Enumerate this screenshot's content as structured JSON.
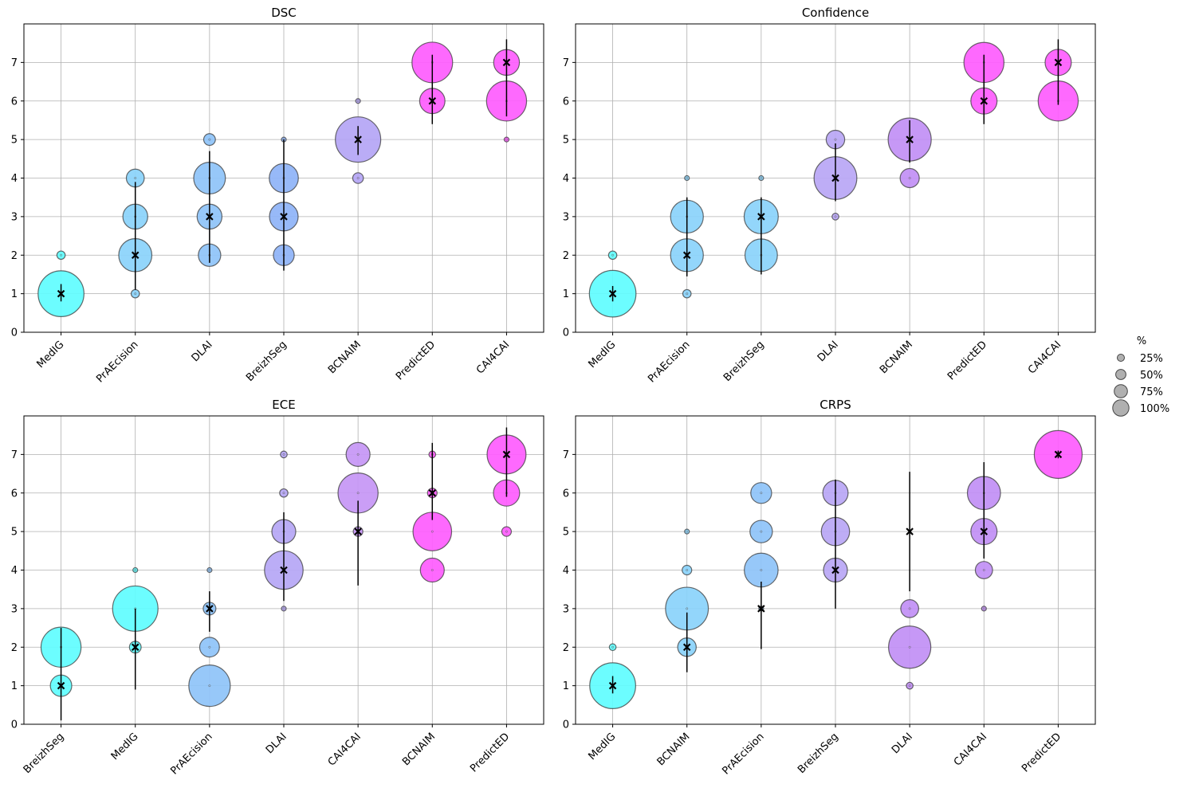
{
  "chart_data": [
    {
      "type": "scatter",
      "title": "DSC",
      "categories": [
        "MedIG",
        "PrAEcision",
        "DLAI",
        "BreizhSeg",
        "BCNAIM",
        "PredictED",
        "CAI4CAI"
      ],
      "ylim": [
        0,
        8
      ],
      "yticks": [
        0,
        1,
        2,
        3,
        4,
        5,
        6,
        7
      ],
      "grid": true,
      "bubbles": [
        {
          "team": "MedIG",
          "rank": 1,
          "pct": 92
        },
        {
          "team": "MedIG",
          "rank": 2,
          "pct": 3
        },
        {
          "team": "PrAEcision",
          "rank": 1,
          "pct": 3
        },
        {
          "team": "PrAEcision",
          "rank": 2,
          "pct": 48
        },
        {
          "team": "PrAEcision",
          "rank": 3,
          "pct": 27
        },
        {
          "team": "PrAEcision",
          "rank": 4,
          "pct": 14
        },
        {
          "team": "DLAI",
          "rank": 2,
          "pct": 22
        },
        {
          "team": "DLAI",
          "rank": 3,
          "pct": 27
        },
        {
          "team": "DLAI",
          "rank": 4,
          "pct": 44
        },
        {
          "team": "DLAI",
          "rank": 5,
          "pct": 6
        },
        {
          "team": "BreizhSeg",
          "rank": 2,
          "pct": 19
        },
        {
          "team": "BreizhSeg",
          "rank": 3,
          "pct": 36
        },
        {
          "team": "BreizhSeg",
          "rank": 4,
          "pct": 37
        },
        {
          "team": "BreizhSeg",
          "rank": 5,
          "pct": 1
        },
        {
          "team": "BCNAIM",
          "rank": 4,
          "pct": 5
        },
        {
          "team": "BCNAIM",
          "rank": 5,
          "pct": 90
        },
        {
          "team": "BCNAIM",
          "rank": 6,
          "pct": 1
        },
        {
          "team": "PredictED",
          "rank": 6,
          "pct": 28
        },
        {
          "team": "PredictED",
          "rank": 7,
          "pct": 72
        },
        {
          "team": "CAI4CAI",
          "rank": 5,
          "pct": 1
        },
        {
          "team": "CAI4CAI",
          "rank": 6,
          "pct": 70
        },
        {
          "team": "CAI4CAI",
          "rank": 7,
          "pct": 29
        }
      ],
      "medians": [
        {
          "team": "MedIG",
          "median": 1,
          "low": 0.8,
          "high": 1.25
        },
        {
          "team": "PrAEcision",
          "median": 2,
          "low": 1.1,
          "high": 3.9
        },
        {
          "team": "DLAI",
          "median": 3,
          "low": 1.8,
          "high": 4.7
        },
        {
          "team": "BreizhSeg",
          "median": 3,
          "low": 1.6,
          "high": 5.0
        },
        {
          "team": "BCNAIM",
          "median": 5,
          "low": 4.6,
          "high": 5.35
        },
        {
          "team": "PredictED",
          "median": 6,
          "low": 5.4,
          "high": 7.2
        },
        {
          "team": "CAI4CAI",
          "median": 7,
          "low": 5.6,
          "high": 7.6
        }
      ]
    },
    {
      "type": "scatter",
      "title": "Confidence",
      "categories": [
        "MedIG",
        "PrAEcision",
        "BreizhSeg",
        "DLAI",
        "BCNAIM",
        "PredictED",
        "CAI4CAI"
      ],
      "ylim": [
        0,
        8
      ],
      "yticks": [
        0,
        1,
        2,
        3,
        4,
        5,
        6,
        7
      ],
      "grid": true,
      "bubbles": [
        {
          "team": "MedIG",
          "rank": 1,
          "pct": 95
        },
        {
          "team": "MedIG",
          "rank": 2,
          "pct": 3
        },
        {
          "team": "PrAEcision",
          "rank": 1,
          "pct": 3
        },
        {
          "team": "PrAEcision",
          "rank": 2,
          "pct": 47
        },
        {
          "team": "PrAEcision",
          "rank": 3,
          "pct": 47
        },
        {
          "team": "PrAEcision",
          "rank": 4,
          "pct": 1
        },
        {
          "team": "BreizhSeg",
          "rank": 2,
          "pct": 46
        },
        {
          "team": "BreizhSeg",
          "rank": 3,
          "pct": 51
        },
        {
          "team": "BreizhSeg",
          "rank": 4,
          "pct": 1
        },
        {
          "team": "DLAI",
          "rank": 3,
          "pct": 2
        },
        {
          "team": "DLAI",
          "rank": 4,
          "pct": 80
        },
        {
          "team": "DLAI",
          "rank": 5,
          "pct": 15
        },
        {
          "team": "BCNAIM",
          "rank": 4,
          "pct": 16
        },
        {
          "team": "BCNAIM",
          "rank": 5,
          "pct": 81
        },
        {
          "team": "PredictED",
          "rank": 6,
          "pct": 30
        },
        {
          "team": "PredictED",
          "rank": 7,
          "pct": 70
        },
        {
          "team": "CAI4CAI",
          "rank": 6,
          "pct": 70
        },
        {
          "team": "CAI4CAI",
          "rank": 7,
          "pct": 30
        }
      ],
      "medians": [
        {
          "team": "MedIG",
          "median": 1,
          "low": 0.8,
          "high": 1.2
        },
        {
          "team": "PrAEcision",
          "median": 2,
          "low": 1.45,
          "high": 3.5
        },
        {
          "team": "BreizhSeg",
          "median": 3,
          "low": 1.5,
          "high": 3.5
        },
        {
          "team": "DLAI",
          "median": 4,
          "low": 3.4,
          "high": 4.9
        },
        {
          "team": "BCNAIM",
          "median": 5,
          "low": 4.4,
          "high": 5.5
        },
        {
          "team": "PredictED",
          "median": 6,
          "low": 5.4,
          "high": 7.2
        },
        {
          "team": "CAI4CAI",
          "median": 7,
          "low": 5.9,
          "high": 7.6
        }
      ]
    },
    {
      "type": "scatter",
      "title": "ECE",
      "categories": [
        "BreizhSeg",
        "MedIG",
        "PrAEcision",
        "DLAI",
        "CAI4CAI",
        "BCNAIM",
        "PredictED"
      ],
      "ylim": [
        0,
        8
      ],
      "yticks": [
        0,
        1,
        2,
        3,
        4,
        5,
        6,
        7
      ],
      "grid": true,
      "bubbles": [
        {
          "team": "BreizhSeg",
          "rank": 1,
          "pct": 20
        },
        {
          "team": "BreizhSeg",
          "rank": 2,
          "pct": 70
        },
        {
          "team": "MedIG",
          "rank": 2,
          "pct": 6
        },
        {
          "team": "MedIG",
          "rank": 3,
          "pct": 90
        },
        {
          "team": "MedIG",
          "rank": 4,
          "pct": 1
        },
        {
          "team": "PrAEcision",
          "rank": 1,
          "pct": 75
        },
        {
          "team": "PrAEcision",
          "rank": 2,
          "pct": 17
        },
        {
          "team": "PrAEcision",
          "rank": 3,
          "pct": 7
        },
        {
          "team": "PrAEcision",
          "rank": 4,
          "pct": 1
        },
        {
          "team": "DLAI",
          "rank": 3,
          "pct": 1
        },
        {
          "team": "DLAI",
          "rank": 4,
          "pct": 65
        },
        {
          "team": "DLAI",
          "rank": 5,
          "pct": 25
        },
        {
          "team": "DLAI",
          "rank": 6,
          "pct": 3
        },
        {
          "team": "DLAI",
          "rank": 7,
          "pct": 2
        },
        {
          "team": "CAI4CAI",
          "rank": 5,
          "pct": 4
        },
        {
          "team": "CAI4CAI",
          "rank": 6,
          "pct": 70
        },
        {
          "team": "CAI4CAI",
          "rank": 7,
          "pct": 25
        },
        {
          "team": "BCNAIM",
          "rank": 4,
          "pct": 25
        },
        {
          "team": "BCNAIM",
          "rank": 5,
          "pct": 65
        },
        {
          "team": "BCNAIM",
          "rank": 6,
          "pct": 4
        },
        {
          "team": "BCNAIM",
          "rank": 7,
          "pct": 2
        },
        {
          "team": "PredictED",
          "rank": 5,
          "pct": 4
        },
        {
          "team": "PredictED",
          "rank": 6,
          "pct": 30
        },
        {
          "team": "PredictED",
          "rank": 7,
          "pct": 66
        }
      ],
      "medians": [
        {
          "team": "BreizhSeg",
          "median": 1,
          "low": 0.1,
          "high": 2.5
        },
        {
          "team": "MedIG",
          "median": 2,
          "low": 0.9,
          "high": 3.0
        },
        {
          "team": "PrAEcision",
          "median": 3,
          "low": 2.4,
          "high": 3.45
        },
        {
          "team": "DLAI",
          "median": 4,
          "low": 3.2,
          "high": 5.5
        },
        {
          "team": "CAI4CAI",
          "median": 5,
          "low": 3.6,
          "high": 5.8
        },
        {
          "team": "BCNAIM",
          "median": 6,
          "low": 5.3,
          "high": 7.3
        },
        {
          "team": "PredictED",
          "median": 7,
          "low": 5.9,
          "high": 7.7
        }
      ]
    },
    {
      "type": "scatter",
      "title": "CRPS",
      "categories": [
        "MedIG",
        "BCNAIM",
        "PrAEcision",
        "BreizhSeg",
        "DLAI",
        "CAI4CAI",
        "PredictED"
      ],
      "ylim": [
        0,
        8
      ],
      "yticks": [
        0,
        1,
        2,
        3,
        4,
        5,
        6,
        7
      ],
      "grid": true,
      "bubbles": [
        {
          "team": "MedIG",
          "rank": 1,
          "pct": 92
        },
        {
          "team": "MedIG",
          "rank": 2,
          "pct": 2
        },
        {
          "team": "BCNAIM",
          "rank": 2,
          "pct": 15
        },
        {
          "team": "BCNAIM",
          "rank": 3,
          "pct": 80
        },
        {
          "team": "BCNAIM",
          "rank": 4,
          "pct": 4
        },
        {
          "team": "BCNAIM",
          "rank": 5,
          "pct": 1
        },
        {
          "team": "PrAEcision",
          "rank": 3,
          "pct": 1
        },
        {
          "team": "PrAEcision",
          "rank": 4,
          "pct": 50
        },
        {
          "team": "PrAEcision",
          "rank": 5,
          "pct": 22
        },
        {
          "team": "PrAEcision",
          "rank": 6,
          "pct": 19
        },
        {
          "team": "BreizhSeg",
          "rank": 4,
          "pct": 25
        },
        {
          "team": "BreizhSeg",
          "rank": 5,
          "pct": 35
        },
        {
          "team": "BreizhSeg",
          "rank": 6,
          "pct": 28
        },
        {
          "team": "DLAI",
          "rank": 1,
          "pct": 2
        },
        {
          "team": "DLAI",
          "rank": 2,
          "pct": 78
        },
        {
          "team": "DLAI",
          "rank": 3,
          "pct": 14
        },
        {
          "team": "CAI4CAI",
          "rank": 3,
          "pct": 1
        },
        {
          "team": "CAI4CAI",
          "rank": 4,
          "pct": 13
        },
        {
          "team": "CAI4CAI",
          "rank": 5,
          "pct": 30
        },
        {
          "team": "CAI4CAI",
          "rank": 6,
          "pct": 48
        },
        {
          "team": "PredictED",
          "rank": 7,
          "pct": 100
        }
      ],
      "medians": [
        {
          "team": "MedIG",
          "median": 1,
          "low": 0.8,
          "high": 1.25
        },
        {
          "team": "BCNAIM",
          "median": 2,
          "low": 1.35,
          "high": 2.9
        },
        {
          "team": "PrAEcision",
          "median": 3,
          "low": 1.95,
          "high": 3.7
        },
        {
          "team": "BreizhSeg",
          "median": 4,
          "low": 3.0,
          "high": 6.35
        },
        {
          "team": "DLAI",
          "median": 5,
          "low": 3.45,
          "high": 6.55
        },
        {
          "team": "CAI4CAI",
          "median": 5,
          "low": 4.3,
          "high": 6.8
        },
        {
          "team": "PredictED",
          "median": 7,
          "low": 6.9,
          "high": 7.1
        }
      ]
    }
  ],
  "legend": {
    "title": "%",
    "entries": [
      {
        "label": "25%",
        "pct": 25
      },
      {
        "label": "50%",
        "pct": 50
      },
      {
        "label": "75%",
        "pct": 75
      },
      {
        "label": "100%",
        "pct": 100
      }
    ]
  },
  "colors": {
    "MedIG": "#5ffdff",
    "PrAEcision": "#8ad3fb",
    "BreizhSeg": "#8ad3fb",
    "BCNAIM": "#8ad3fb",
    "DLAI": "#a8a6f6",
    "CAI4CAI": "#c18ff5",
    "PredictED": "#fe5cfe",
    "legend_fill": "#b0b0b0"
  }
}
